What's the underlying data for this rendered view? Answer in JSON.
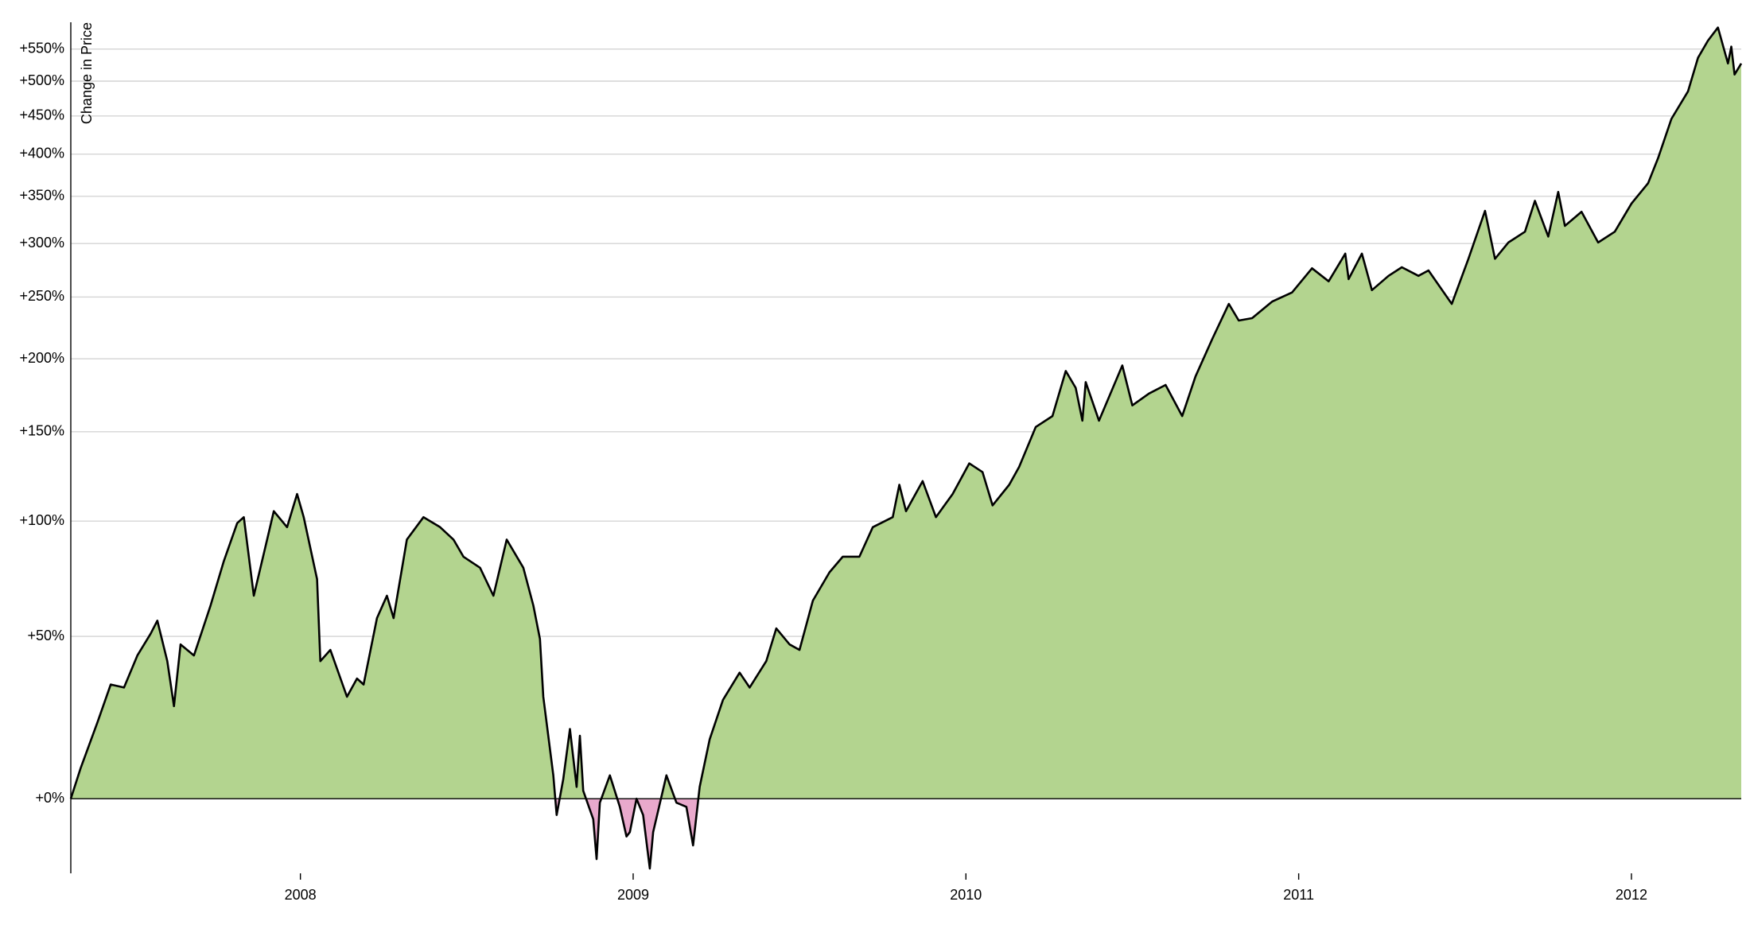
{
  "chart_data": {
    "type": "area",
    "y_label": "Change in Price",
    "yscale": "log",
    "grid": true,
    "colors": {
      "above": "#b3d48f",
      "below": "#e9a9cc",
      "line": "#000000"
    },
    "xlim": [
      2007.31,
      2012.33
    ],
    "xticks": [
      2008,
      2009,
      2010,
      2011,
      2012
    ],
    "ylim": [
      -17,
      595
    ],
    "yticks": [
      {
        "value": 0,
        "label": "+0%"
      },
      {
        "value": 50,
        "label": "+50%"
      },
      {
        "value": 100,
        "label": "+100%"
      },
      {
        "value": 150,
        "label": "+150%"
      },
      {
        "value": 200,
        "label": "+200%"
      },
      {
        "value": 250,
        "label": "+250%"
      },
      {
        "value": 300,
        "label": "+300%"
      },
      {
        "value": 350,
        "label": "+350%"
      },
      {
        "value": 400,
        "label": "+400%"
      },
      {
        "value": 450,
        "label": "+450%"
      },
      {
        "value": 500,
        "label": "+500%"
      },
      {
        "value": 550,
        "label": "+550%"
      }
    ],
    "x": [
      2007.31,
      2007.34,
      2007.39,
      2007.43,
      2007.47,
      2007.51,
      2007.55,
      2007.57,
      2007.6,
      2007.62,
      2007.64,
      2007.68,
      2007.73,
      2007.77,
      2007.81,
      2007.83,
      2007.86,
      2007.9,
      2007.92,
      2007.96,
      2007.99,
      2008.01,
      2008.05,
      2008.06,
      2008.09,
      2008.14,
      2008.17,
      2008.19,
      2008.23,
      2008.26,
      2008.28,
      2008.32,
      2008.37,
      2008.42,
      2008.46,
      2008.49,
      2008.54,
      2008.58,
      2008.62,
      2008.67,
      2008.7,
      2008.72,
      2008.73,
      2008.76,
      2008.77,
      2008.79,
      2008.81,
      2008.83,
      2008.84,
      2008.85,
      2008.88,
      2008.89,
      2008.9,
      2008.93,
      2008.96,
      2008.98,
      2008.99,
      2009.01,
      2009.03,
      2009.05,
      2009.06,
      2009.1,
      2009.13,
      2009.16,
      2009.18,
      2009.2,
      2009.23,
      2009.27,
      2009.32,
      2009.35,
      2009.4,
      2009.43,
      2009.47,
      2009.5,
      2009.54,
      2009.59,
      2009.63,
      2009.68,
      2009.72,
      2009.78,
      2009.8,
      2009.82,
      2009.87,
      2009.91,
      2009.96,
      2010.01,
      2010.05,
      2010.08,
      2010.13,
      2010.16,
      2010.21,
      2010.26,
      2010.3,
      2010.33,
      2010.35,
      2010.36,
      2010.4,
      2010.47,
      2010.5,
      2010.55,
      2010.6,
      2010.65,
      2010.69,
      2010.74,
      2010.79,
      2010.82,
      2010.86,
      2010.92,
      2010.98,
      2011.04,
      2011.09,
      2011.14,
      2011.15,
      2011.19,
      2011.22,
      2011.27,
      2011.31,
      2011.36,
      2011.39,
      2011.46,
      2011.51,
      2011.56,
      2011.59,
      2011.63,
      2011.68,
      2011.71,
      2011.75,
      2011.78,
      2011.8,
      2011.85,
      2011.9,
      2011.95,
      2012.0,
      2012.05,
      2012.08,
      2012.12,
      2012.17,
      2012.2,
      2012.23,
      2012.26,
      2012.29,
      2012.3,
      2012.31,
      2012.33
    ],
    "values": [
      0,
      8,
      21,
      33,
      32,
      43,
      51,
      56,
      41,
      26,
      47,
      43,
      62,
      81,
      99,
      102,
      66,
      91,
      105,
      97,
      114,
      102,
      73,
      41,
      45,
      29,
      35,
      33,
      57,
      66,
      57,
      91,
      102,
      97,
      91,
      83,
      78,
      66,
      91,
      78,
      62,
      49,
      29,
      6,
      -4,
      5,
      19,
      3,
      17,
      2,
      -5,
      -14,
      -1,
      6,
      -2,
      -9,
      -8,
      0,
      -4,
      -16,
      -8,
      6,
      -1,
      -2,
      -11,
      3,
      16,
      28,
      37,
      32,
      41,
      53,
      47,
      45,
      64,
      76,
      83,
      83,
      97,
      102,
      119,
      105,
      121,
      102,
      114,
      131,
      126,
      108,
      119,
      129,
      153,
      160,
      191,
      179,
      157,
      183,
      157,
      195,
      167,
      175,
      181,
      160,
      187,
      215,
      244,
      230,
      232,
      246,
      254,
      276,
      264,
      290,
      266,
      290,
      256,
      269,
      277,
      269,
      274,
      244,
      285,
      334,
      285,
      301,
      312,
      345,
      307,
      355,
      318,
      333,
      301,
      312,
      342,
      365,
      395,
      446,
      485,
      536,
      564,
      586,
      527,
      554,
      510,
      527
    ]
  }
}
